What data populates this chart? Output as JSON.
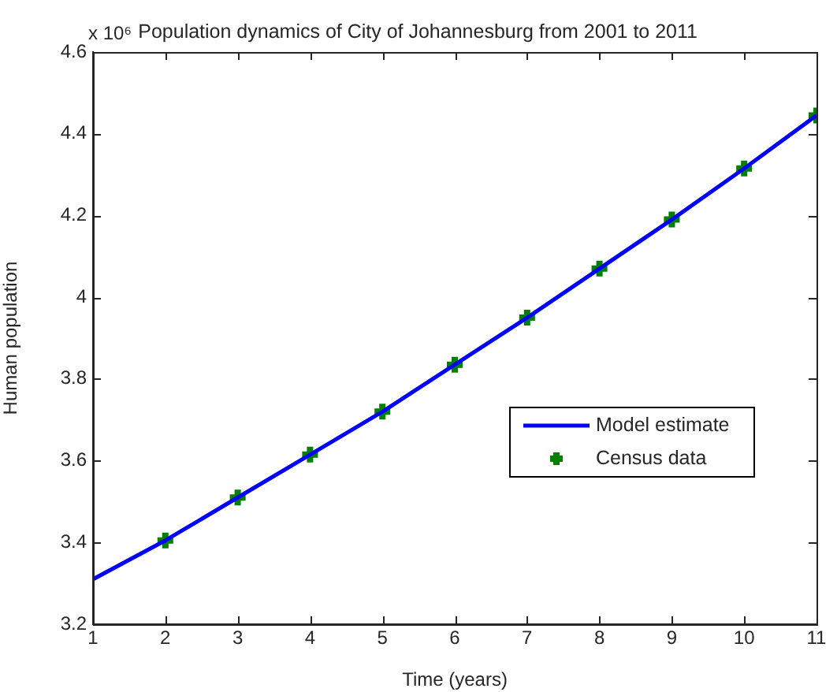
{
  "chart_data": {
    "type": "line",
    "title": "Population dynamics of City of Johannesburg from 2001 to 2011",
    "xlabel": "Time (years)",
    "ylabel": "Human population",
    "annotations": [
      "x 10⁶"
    ],
    "xlim": [
      1,
      11
    ],
    "xticks": [
      1,
      2,
      3,
      4,
      5,
      6,
      7,
      8,
      9,
      10,
      11
    ],
    "ylim": [
      3.2,
      4.6
    ],
    "yticks": [
      3.2,
      3.4,
      3.6,
      3.8,
      4,
      4.2,
      4.4,
      4.6
    ],
    "grid": false,
    "legend": "right",
    "series": [
      {
        "name": "Model estimate",
        "marker": "none",
        "color": "#0000ff",
        "x": [
          1,
          2,
          3,
          4,
          5,
          6,
          7,
          8,
          9,
          10,
          11
        ],
        "values": [
          3.31,
          3.405,
          3.51,
          3.615,
          3.72,
          3.835,
          3.95,
          4.07,
          4.19,
          4.315,
          4.445
        ]
      },
      {
        "name": "Census data",
        "type": "scatter",
        "marker": "cross",
        "color": "#008000",
        "x": [
          2,
          3,
          4,
          5,
          6,
          7,
          8,
          9,
          10,
          11
        ],
        "values": [
          3.405,
          3.51,
          3.615,
          3.72,
          3.835,
          3.95,
          4.07,
          4.19,
          4.315,
          4.445
        ]
      }
    ]
  }
}
